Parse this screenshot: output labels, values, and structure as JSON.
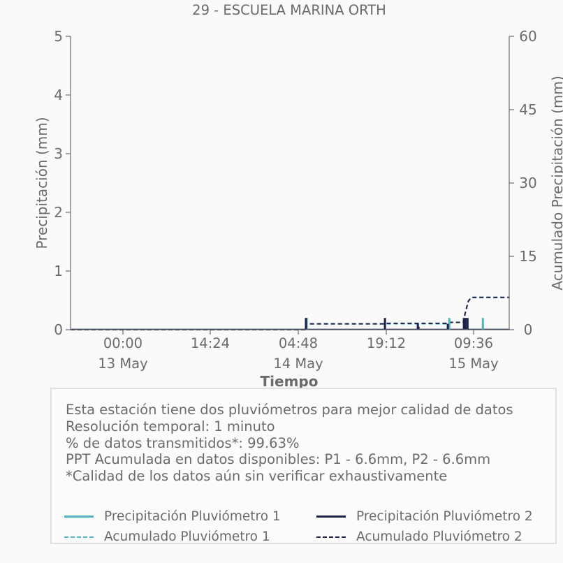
{
  "chart_data": {
    "type": "bar",
    "title": "29 - ESCUELA MARINA ORTH",
    "xlabel": "Tiempo",
    "ylabel_left": "Precipitación (mm)",
    "ylabel_right": "Acumulado Precipitación (mm)",
    "ylim_left": [
      0,
      5
    ],
    "ylim_right": [
      0,
      60
    ],
    "yticks_left": [
      "0",
      "1",
      "2",
      "3",
      "4",
      "5"
    ],
    "yticks_right": [
      "0",
      "15",
      "30",
      "45",
      "60"
    ],
    "x_range_hours": [
      0,
      60
    ],
    "xticks": [
      {
        "label": "00:00",
        "sublabel": "13 May",
        "hour": 7.2
      },
      {
        "label": "14:24",
        "sublabel": "",
        "hour": 21.6
      },
      {
        "label": "04:48",
        "sublabel": "14 May",
        "hour": 36.0
      },
      {
        "label": "19:12",
        "sublabel": "",
        "hour": 50.4
      },
      {
        "label": "09:36",
        "sublabel": "15 May",
        "hour": 64.8
      }
    ],
    "grid": false,
    "series": [
      {
        "name": "Precipitación Pluviómetro 1",
        "kind": "bar",
        "color": "#4eb3be",
        "points": [
          [
            32.3,
            0.2
          ],
          [
            47.5,
            0.05
          ],
          [
            47.6,
            0.03
          ],
          [
            51.8,
            0.2
          ],
          [
            54.1,
            0.2
          ],
          [
            56.4,
            0.2
          ]
        ]
      },
      {
        "name": "Precipitación Pluviómetro 2",
        "kind": "bar",
        "color": "#1c2047",
        "points": [
          [
            32.2,
            0.2
          ],
          [
            43.0,
            0.2
          ],
          [
            47.5,
            0.1
          ],
          [
            47.6,
            0.05
          ],
          [
            51.6,
            0.1
          ],
          [
            53.8,
            0.2
          ],
          [
            54.0,
            0.2
          ],
          [
            54.3,
            0.2
          ]
        ]
      },
      {
        "name": "Acumulado Pluviómetro 1",
        "kind": "line",
        "color": "#4eb3be",
        "points": [
          [
            0,
            0
          ],
          [
            32.2,
            0
          ],
          [
            32.3,
            1.2
          ],
          [
            43.0,
            1.2
          ],
          [
            51.7,
            1.2
          ],
          [
            51.9,
            1.5
          ],
          [
            53.7,
            1.5
          ],
          [
            54.0,
            3.5
          ],
          [
            54.4,
            5.8
          ],
          [
            54.8,
            6.6
          ],
          [
            60,
            6.6
          ]
        ]
      },
      {
        "name": "Acumulado Pluviómetro 2",
        "kind": "line",
        "color": "#1c2047",
        "points": [
          [
            0,
            0
          ],
          [
            32.2,
            0
          ],
          [
            32.3,
            1.2
          ],
          [
            43.0,
            1.2
          ],
          [
            43.1,
            1.3
          ],
          [
            51.6,
            1.3
          ],
          [
            51.7,
            1.5
          ],
          [
            53.7,
            1.5
          ],
          [
            54.0,
            3.5
          ],
          [
            54.4,
            5.8
          ],
          [
            54.8,
            6.6
          ],
          [
            60,
            6.6
          ]
        ]
      }
    ]
  },
  "info": {
    "line1": "Esta estación tiene dos pluviómetros para mejor calidad de datos",
    "line2": "Resolución temporal: 1 minuto",
    "line3": "% de datos transmitidos*: 99.63%",
    "line4": "PPT Acumulada en datos disponibles: P1 - 6.6mm, P2 - 6.6mm",
    "line5": "*Calidad de los datos aún sin verificar exhaustivamente"
  },
  "legend": {
    "p1": "Precipitación Pluviómetro 1",
    "p2": "Precipitación Pluviómetro 2",
    "a1": "Acumulado Pluviómetro 1",
    "a2": "Acumulado Pluviómetro 2"
  },
  "colors": {
    "p1": "#4eb3be",
    "p2": "#1c2047",
    "text": "#6b6b6b",
    "axis": "#6b6b6b"
  }
}
